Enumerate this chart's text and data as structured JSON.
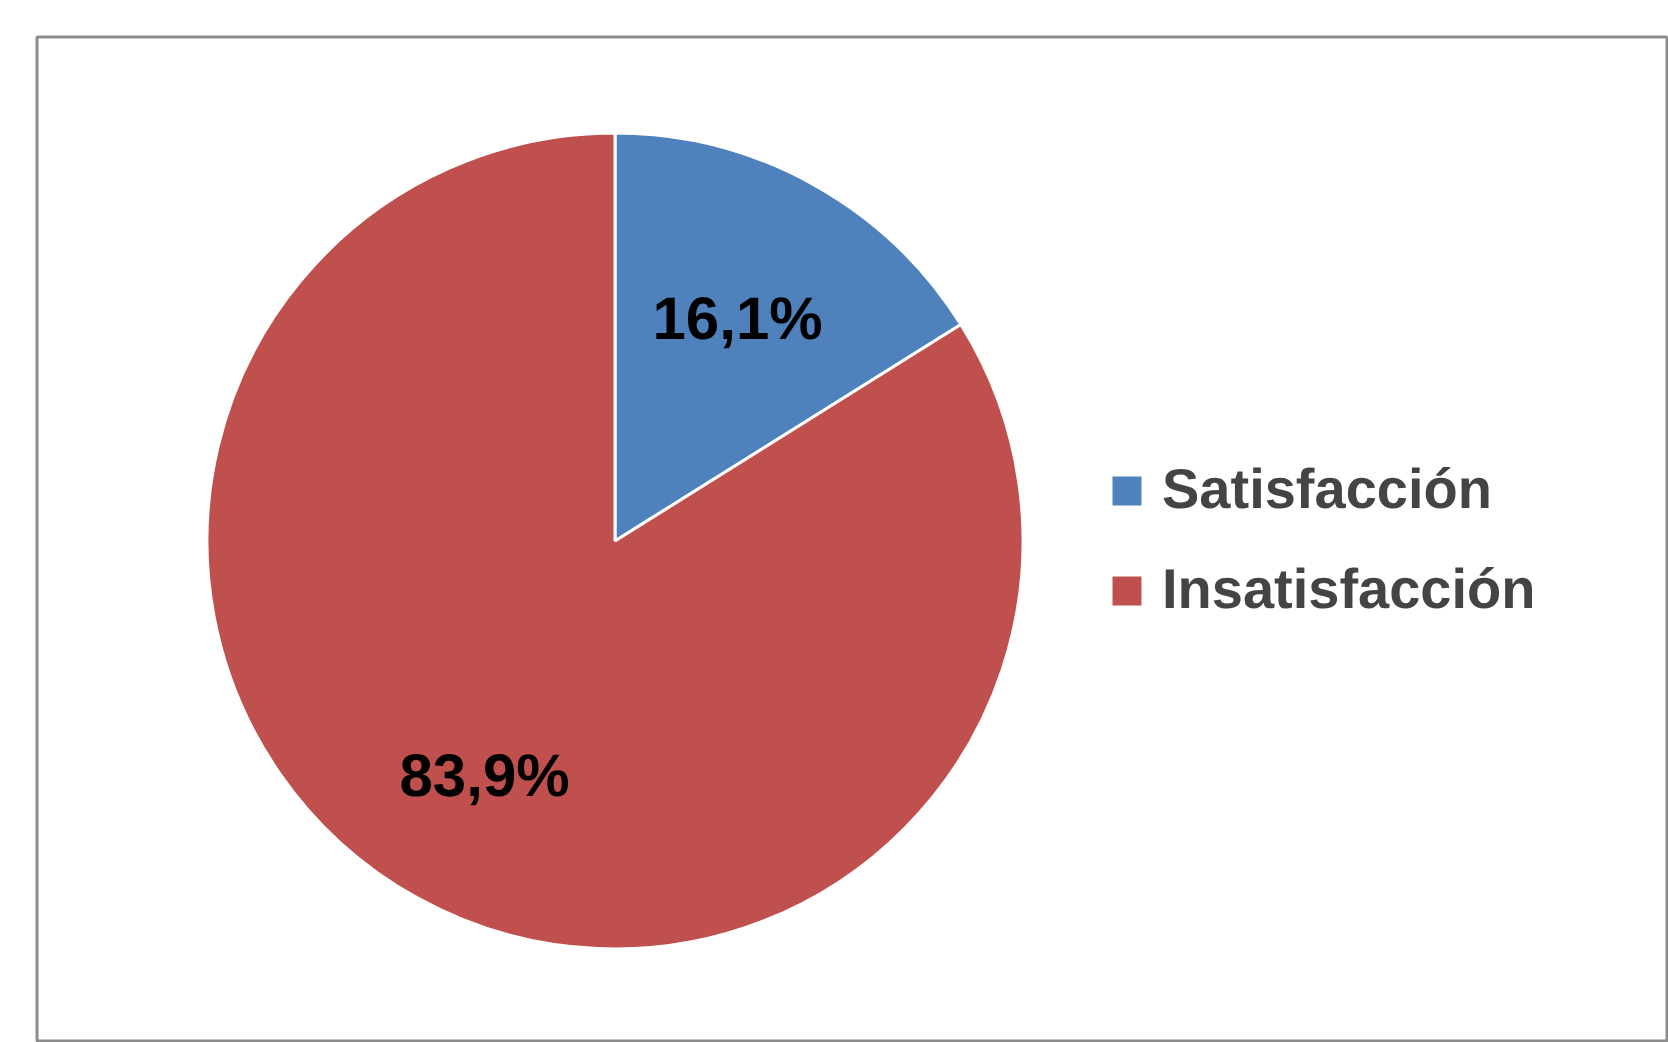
{
  "chart_data": {
    "type": "pie",
    "categories": [
      "Satisfacción",
      "Insatisfacción"
    ],
    "values": [
      16.1,
      83.9
    ],
    "colors": [
      "#4f81bd",
      "#c0504d"
    ],
    "value_labels": [
      "16,1%",
      "83,9%"
    ],
    "legend": "right"
  }
}
